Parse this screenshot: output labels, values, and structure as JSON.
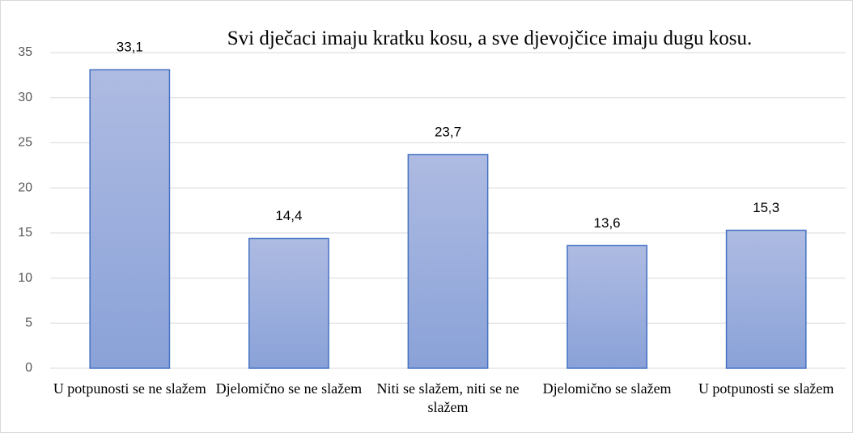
{
  "chart_data": {
    "type": "bar",
    "title": "Svi dječaci imaju kratku kosu, a sve djevojčice imaju dugu kosu.",
    "categories": [
      "U potpunosti se ne slažem",
      "Djelomično se ne slažem",
      "Niti se slažem, niti se ne slažem",
      "Djelomično se slažem",
      "U potpunosti se slažem"
    ],
    "values": [
      33.1,
      14.4,
      23.7,
      13.6,
      15.3
    ],
    "value_labels": [
      "33,1",
      "14,4",
      "23,7",
      "13,6",
      "15,3"
    ],
    "color": "#4472c4",
    "ylim": [
      0,
      35
    ],
    "yticks": [
      0,
      5,
      10,
      15,
      20,
      25,
      30,
      35
    ],
    "grid": true
  }
}
